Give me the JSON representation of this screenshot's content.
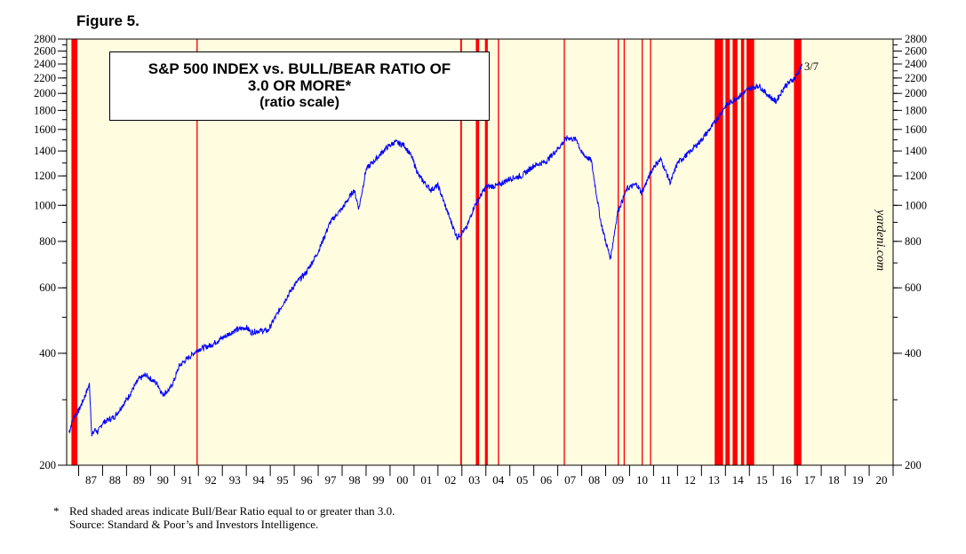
{
  "figure_label": "Figure 5.",
  "title_lines": [
    "S&P 500 INDEX vs. BULL/BEAR RATIO OF",
    "3.0 OR MORE*",
    "(ratio scale)"
  ],
  "watermark": "yardeni.com",
  "last_point_label": "3/7",
  "footnote": {
    "star": "*",
    "note": "Red shaded areas indicate Bull/Bear Ratio equal to or greater than 3.0.",
    "source": "Source: Standard & Poor’s and Investors Intelligence."
  },
  "colors": {
    "background": "#fffce0",
    "line": "#0000ff",
    "shade": "#ff0000",
    "axis": "#000000"
  },
  "chart_data": {
    "type": "line",
    "title": "S&P 500 INDEX vs. BULL/BEAR RATIO OF 3.0 OR MORE* (ratio scale)",
    "yscale": "log",
    "ylim": [
      200,
      2800
    ],
    "xlim": [
      1986.5,
      2021.0
    ],
    "y_ticks": [
      200,
      400,
      600,
      800,
      1000,
      1200,
      1400,
      1600,
      1800,
      2000,
      2200,
      2400,
      2600,
      2800
    ],
    "x_tick_labels": [
      "87",
      "88",
      "89",
      "90",
      "91",
      "92",
      "93",
      "94",
      "95",
      "96",
      "97",
      "98",
      "99",
      "00",
      "01",
      "02",
      "03",
      "04",
      "05",
      "06",
      "07",
      "08",
      "09",
      "10",
      "11",
      "12",
      "13",
      "14",
      "15",
      "16",
      "17",
      "18",
      "19",
      "20"
    ],
    "series": [
      {
        "x": [
          1986.6,
          1986.8,
          1987.0,
          1987.2,
          1987.45,
          1987.55,
          1987.7,
          1987.8,
          1988.0,
          1988.5,
          1989.0,
          1989.5,
          1989.8,
          1990.3,
          1990.5,
          1990.8,
          1991.0,
          1991.2,
          1991.5,
          1992.0,
          1992.5,
          1993.0,
          1993.5,
          1994.0,
          1994.2,
          1994.5,
          1994.9,
          1995.5,
          1996.0,
          1996.5,
          1997.0,
          1997.5,
          1997.8,
          1998.0,
          1998.5,
          1998.7,
          1999.0,
          1999.5,
          1999.8,
          2000.2,
          2000.6,
          2000.9,
          2001.2,
          2001.7,
          2002.0,
          2002.5,
          2002.8,
          2003.2,
          2003.5,
          2004.0,
          2004.5,
          2005.0,
          2005.5,
          2006.0,
          2006.5,
          2007.0,
          2007.4,
          2007.8,
          2008.0,
          2008.4,
          2008.8,
          2009.0,
          2009.2,
          2009.5,
          2009.9,
          2010.3,
          2010.5,
          2011.0,
          2011.3,
          2011.7,
          2012.0,
          2012.5,
          2013.0,
          2013.5,
          2014.0,
          2014.5,
          2015.0,
          2015.4,
          2015.7,
          2016.1,
          2016.5,
          2016.9,
          2017.2
        ],
        "y": [
          245,
          270,
          280,
          300,
          330,
          240,
          250,
          245,
          260,
          270,
          300,
          340,
          350,
          330,
          310,
          320,
          340,
          370,
          385,
          410,
          420,
          440,
          460,
          470,
          455,
          460,
          460,
          540,
          610,
          660,
          750,
          900,
          950,
          980,
          1100,
          980,
          1250,
          1350,
          1420,
          1480,
          1450,
          1350,
          1200,
          1100,
          1130,
          920,
          820,
          870,
          990,
          1120,
          1130,
          1180,
          1200,
          1280,
          1310,
          1420,
          1520,
          1500,
          1380,
          1320,
          900,
          800,
          720,
          960,
          1110,
          1140,
          1080,
          1270,
          1330,
          1150,
          1300,
          1390,
          1500,
          1650,
          1850,
          1950,
          2060,
          2100,
          2000,
          1900,
          2100,
          2200,
          2380
        ]
      }
    ],
    "shaded_periods": [
      [
        1986.7,
        1986.95
      ],
      [
        1991.92,
        1991.97
      ],
      [
        2002.93,
        2003.0
      ],
      [
        2003.58,
        2003.72
      ],
      [
        2003.96,
        2004.08
      ],
      [
        2004.5,
        2004.55
      ],
      [
        2007.25,
        2007.3
      ],
      [
        2009.5,
        2009.55
      ],
      [
        2009.75,
        2009.8
      ],
      [
        2010.5,
        2010.55
      ],
      [
        2010.85,
        2010.9
      ],
      [
        2013.55,
        2013.9
      ],
      [
        2014.0,
        2014.18
      ],
      [
        2014.3,
        2014.5
      ],
      [
        2014.65,
        2014.78
      ],
      [
        2014.88,
        2015.2
      ],
      [
        2016.86,
        2017.17
      ]
    ],
    "annotations": [
      "3/7"
    ]
  }
}
